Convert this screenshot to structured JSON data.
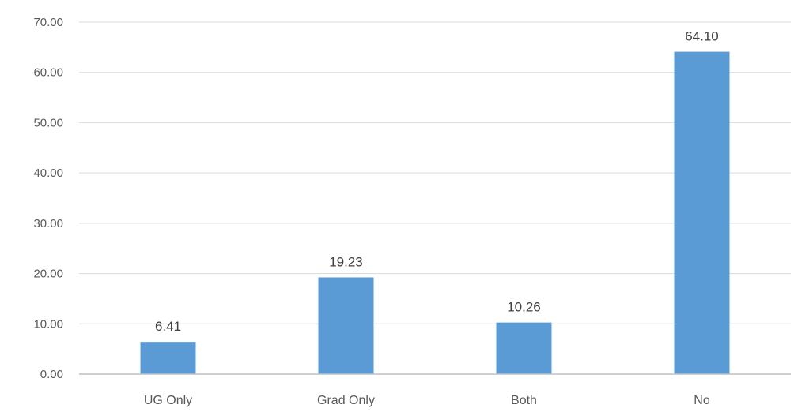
{
  "chart_data": {
    "type": "bar",
    "categories": [
      "UG Only",
      "Grad Only",
      "Both",
      "No"
    ],
    "values": [
      6.41,
      19.23,
      10.26,
      64.1
    ],
    "value_labels": [
      "6.41",
      "19.23",
      "10.26",
      "64.10"
    ],
    "y_ticks": [
      "0.00",
      "10.00",
      "20.00",
      "30.00",
      "40.00",
      "50.00",
      "60.00",
      "70.00"
    ],
    "ylim": [
      0,
      70
    ],
    "grid": true,
    "legend": "none",
    "bar_color": "#5b9bd5",
    "title": "",
    "xlabel": "",
    "ylabel": ""
  }
}
